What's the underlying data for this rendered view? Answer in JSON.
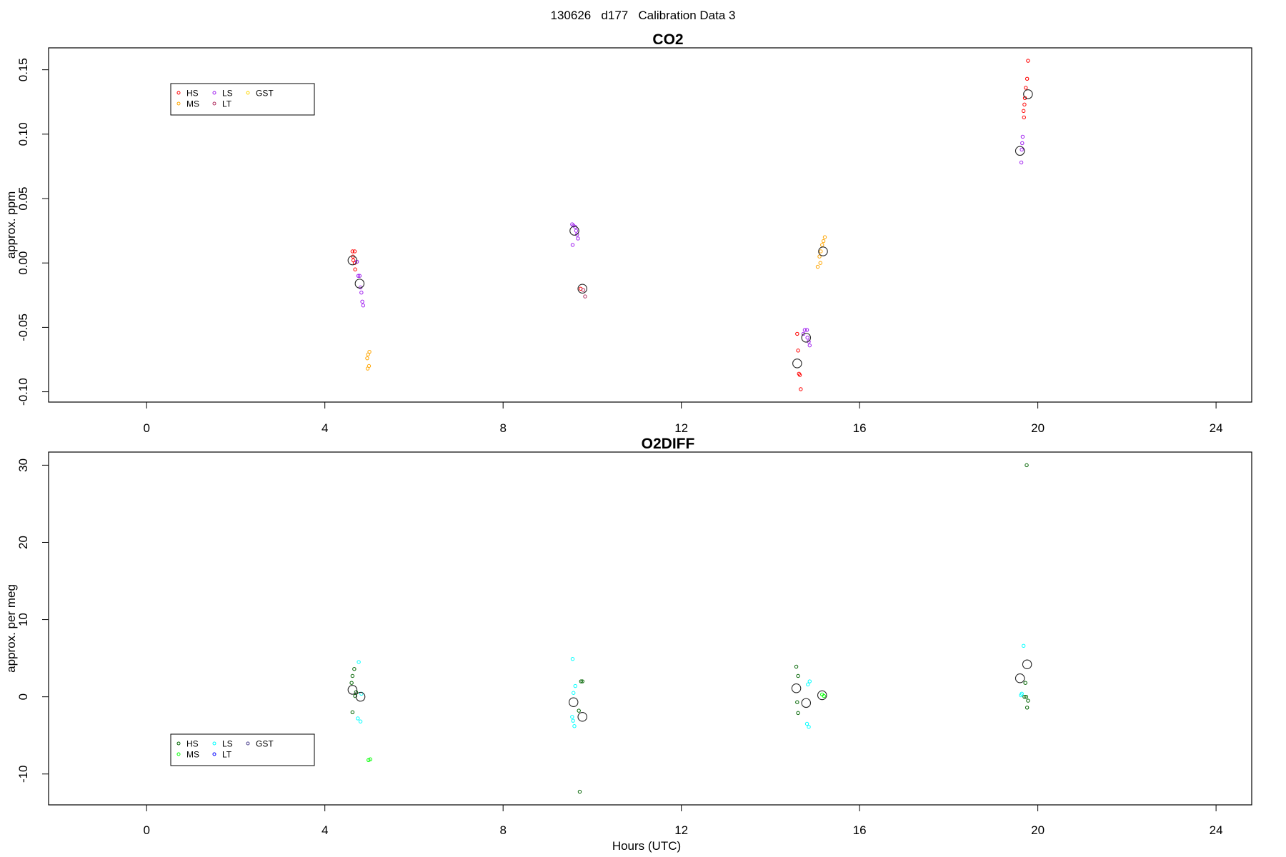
{
  "figure_title": "130626   d177   Calibration Data 3",
  "chart_data": [
    {
      "type": "scatter",
      "title": "CO2",
      "xlabel": "",
      "ylabel": "approx. ppm",
      "xlim": [
        -2.2,
        24.8
      ],
      "ylim": [
        -0.108,
        0.167
      ],
      "xticks": [
        0,
        4,
        8,
        12,
        16,
        20,
        24
      ],
      "yticks": [
        -0.1,
        -0.05,
        0.0,
        0.05,
        0.1,
        0.15
      ],
      "ytick_labels": [
        "-0.10",
        "-0.05",
        "0.00",
        "0.05",
        "0.10",
        "0.15"
      ],
      "grid": false,
      "legend": {
        "placement": "top-left",
        "entries": [
          {
            "label": "HS",
            "color": "#ff0000"
          },
          {
            "label": "LS",
            "color": "#a020f0"
          },
          {
            "label": "GST",
            "color": "#ffd700"
          },
          {
            "label": "MS",
            "color": "#ffa500"
          },
          {
            "label": "LT",
            "color": "#b03060"
          }
        ]
      },
      "series": [
        {
          "label": "HS",
          "color": "#ff0000",
          "points": [
            [
              4.62,
              0.009
            ],
            [
              4.67,
              0.009
            ],
            [
              4.63,
              0.005
            ],
            [
              4.64,
              0.002
            ],
            [
              4.67,
              0.0
            ],
            [
              4.68,
              -0.005
            ],
            [
              9.74,
              -0.02
            ],
            [
              14.6,
              -0.055
            ],
            [
              14.62,
              -0.068
            ],
            [
              14.64,
              -0.086
            ],
            [
              14.66,
              -0.087
            ],
            [
              14.68,
              -0.098
            ],
            [
              19.78,
              0.157
            ],
            [
              19.76,
              0.143
            ],
            [
              19.73,
              0.136
            ],
            [
              19.71,
              0.128
            ],
            [
              19.7,
              0.123
            ],
            [
              19.68,
              0.118
            ],
            [
              19.69,
              0.113
            ]
          ]
        },
        {
          "label": "LS",
          "color": "#a020f0",
          "points": [
            [
              4.72,
              0.001
            ],
            [
              4.75,
              -0.01
            ],
            [
              4.78,
              -0.01
            ],
            [
              4.8,
              -0.019
            ],
            [
              4.82,
              -0.023
            ],
            [
              4.84,
              -0.03
            ],
            [
              4.86,
              -0.033
            ],
            [
              9.55,
              0.03
            ],
            [
              9.58,
              0.029
            ],
            [
              9.62,
              0.028
            ],
            [
              9.64,
              0.025
            ],
            [
              9.66,
              0.022
            ],
            [
              9.68,
              0.019
            ],
            [
              9.56,
              0.014
            ],
            [
              14.77,
              -0.052
            ],
            [
              14.82,
              -0.052
            ],
            [
              14.74,
              -0.055
            ],
            [
              14.83,
              -0.058
            ],
            [
              14.86,
              -0.061
            ],
            [
              14.88,
              -0.064
            ],
            [
              19.66,
              0.098
            ],
            [
              19.65,
              0.093
            ],
            [
              19.64,
              0.088
            ],
            [
              19.63,
              0.078
            ]
          ]
        },
        {
          "label": "MS",
          "color": "#ffa500",
          "points": [
            [
              5.0,
              -0.069
            ],
            [
              4.97,
              -0.071
            ],
            [
              4.95,
              -0.074
            ],
            [
              4.99,
              -0.08
            ],
            [
              4.96,
              -0.082
            ],
            [
              15.22,
              0.02
            ],
            [
              15.19,
              0.017
            ],
            [
              15.16,
              0.014
            ],
            [
              15.13,
              0.009
            ],
            [
              15.1,
              0.005
            ],
            [
              15.12,
              0.0
            ],
            [
              15.06,
              -0.003
            ]
          ]
        },
        {
          "label": "LT",
          "color": "#b03060",
          "points": [
            [
              9.8,
              -0.021
            ],
            [
              9.84,
              -0.026
            ]
          ]
        }
      ],
      "means": [
        {
          "x": 4.62,
          "y": 0.002
        },
        {
          "x": 4.78,
          "y": -0.016
        },
        {
          "x": 9.6,
          "y": 0.025
        },
        {
          "x": 9.78,
          "y": -0.02
        },
        {
          "x": 14.6,
          "y": -0.078
        },
        {
          "x": 14.8,
          "y": -0.058
        },
        {
          "x": 15.18,
          "y": 0.009
        },
        {
          "x": 19.6,
          "y": 0.087
        },
        {
          "x": 19.78,
          "y": 0.131
        }
      ]
    },
    {
      "type": "scatter",
      "title": "O2DIFF",
      "xlabel": "Hours (UTC)",
      "ylabel": "approx. per meg",
      "xlim": [
        -2.2,
        24.8
      ],
      "ylim": [
        -14.0,
        31.7
      ],
      "xticks": [
        0,
        4,
        8,
        12,
        16,
        20,
        24
      ],
      "yticks": [
        -10,
        0,
        10,
        20,
        30
      ],
      "ytick_labels": [
        "-10",
        "0",
        "10",
        "20",
        "30"
      ],
      "grid": false,
      "legend": {
        "placement": "bottom-left",
        "entries": [
          {
            "label": "HS",
            "color": "#006400"
          },
          {
            "label": "LS",
            "color": "#00ffff"
          },
          {
            "label": "GST",
            "color": "#483d8b"
          },
          {
            "label": "MS",
            "color": "#00ff00"
          },
          {
            "label": "LT",
            "color": "#0000ff"
          }
        ]
      },
      "series": [
        {
          "label": "HS",
          "color": "#006400",
          "points": [
            [
              4.66,
              3.6
            ],
            [
              4.62,
              2.7
            ],
            [
              4.6,
              1.8
            ],
            [
              4.7,
              0.6
            ],
            [
              4.68,
              0.1
            ],
            [
              4.62,
              -2.0
            ],
            [
              9.75,
              2.0
            ],
            [
              9.78,
              2.0
            ],
            [
              9.7,
              -1.8
            ],
            [
              9.72,
              -12.3
            ],
            [
              14.58,
              3.9
            ],
            [
              14.62,
              2.7
            ],
            [
              14.6,
              -0.7
            ],
            [
              14.62,
              -2.1
            ],
            [
              19.75,
              30.0
            ],
            [
              19.72,
              1.8
            ],
            [
              19.7,
              0.0
            ],
            [
              19.74,
              0.0
            ],
            [
              19.78,
              -0.5
            ],
            [
              19.76,
              -1.4
            ]
          ]
        },
        {
          "label": "LS",
          "color": "#00ffff",
          "points": [
            [
              4.76,
              4.5
            ],
            [
              4.82,
              0.4
            ],
            [
              4.74,
              -2.8
            ],
            [
              4.8,
              -3.2
            ],
            [
              9.56,
              4.9
            ],
            [
              9.62,
              1.4
            ],
            [
              9.58,
              0.5
            ],
            [
              9.55,
              -2.6
            ],
            [
              9.57,
              -3.1
            ],
            [
              9.6,
              -3.8
            ],
            [
              14.88,
              2.0
            ],
            [
              14.84,
              1.6
            ],
            [
              14.82,
              -3.5
            ],
            [
              14.86,
              -3.9
            ],
            [
              19.68,
              6.6
            ],
            [
              19.64,
              0.4
            ],
            [
              19.62,
              0.2
            ]
          ]
        },
        {
          "label": "MS",
          "color": "#00ff00",
          "points": [
            [
              5.02,
              -8.1
            ],
            [
              4.98,
              -8.2
            ],
            [
              15.16,
              0.3
            ],
            [
              15.2,
              0.1
            ]
          ]
        }
      ],
      "means": [
        {
          "x": 4.62,
          "y": 0.9
        },
        {
          "x": 4.8,
          "y": 0.0
        },
        {
          "x": 9.58,
          "y": -0.7
        },
        {
          "x": 9.78,
          "y": -2.6
        },
        {
          "x": 14.58,
          "y": 1.1
        },
        {
          "x": 14.8,
          "y": -0.8
        },
        {
          "x": 15.16,
          "y": 0.2
        },
        {
          "x": 19.6,
          "y": 2.4
        },
        {
          "x": 19.76,
          "y": 4.2
        }
      ]
    }
  ]
}
